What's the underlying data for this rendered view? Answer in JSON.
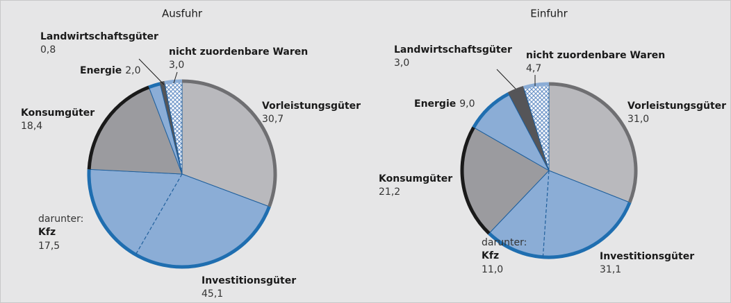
{
  "chart_data": [
    {
      "type": "pie",
      "title": "Ausfuhr",
      "categories": [
        "Vorleistungsgüter",
        "Investitionsgüter",
        "Konsumgüter",
        "Energie",
        "Landwirtschaftsgüter",
        "nicht zuordenbare Waren"
      ],
      "values": [
        30.7,
        45.1,
        18.4,
        2.0,
        0.8,
        3.0
      ],
      "value_labels": [
        "30,7",
        "45,1",
        "18,4",
        "2,0",
        "0,8",
        "3,0"
      ],
      "colors": [
        "#b9b9bd",
        "#8badd6",
        "#9b9b9f",
        "#8badd6",
        "#555558",
        "hatch"
      ],
      "edge_colors": [
        "#6f6f72",
        "#1f6eb0",
        "#1a1a1a",
        "#1f6eb0",
        "#555558",
        "#8badd6"
      ],
      "annotation": {
        "prefix": "darunter:",
        "name": "Kfz",
        "value": 17.5,
        "value_label": "17,5"
      }
    },
    {
      "type": "pie",
      "title": "Einfuhr",
      "categories": [
        "Vorleistungsgüter",
        "Investitionsgüter",
        "Konsumgüter",
        "Energie",
        "Landwirtschaftsgüter",
        "nicht zuordenbare Waren"
      ],
      "values": [
        31.0,
        31.1,
        21.2,
        9.0,
        3.0,
        4.7
      ],
      "value_labels": [
        "31,0",
        "31,1",
        "21,2",
        "9,0",
        "3,0",
        "4,7"
      ],
      "colors": [
        "#b9b9bd",
        "#8badd6",
        "#9b9b9f",
        "#8badd6",
        "#555558",
        "hatch"
      ],
      "edge_colors": [
        "#6f6f72",
        "#1f6eb0",
        "#1a1a1a",
        "#1f6eb0",
        "#555558",
        "#8badd6"
      ],
      "annotation": {
        "prefix": "darunter:",
        "name": "Kfz",
        "value": 11.0,
        "value_label": "11,0"
      }
    }
  ]
}
